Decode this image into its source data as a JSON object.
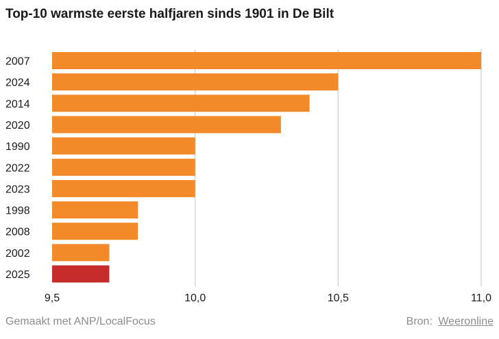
{
  "chart_data": {
    "type": "bar",
    "orientation": "horizontal",
    "title": "Top-10 warmste eerste halfjaren sinds 1901 in De Bilt",
    "categories": [
      "2007",
      "2024",
      "2014",
      "2020",
      "1990",
      "2022",
      "2023",
      "1998",
      "2008",
      "2002",
      "2025"
    ],
    "values": [
      11.0,
      10.5,
      10.4,
      10.3,
      10.0,
      10.0,
      10.0,
      9.8,
      9.8,
      9.7,
      9.7
    ],
    "xlim": [
      9.5,
      11.0
    ],
    "xticks": [
      9.5,
      10.0,
      10.5,
      11.0
    ],
    "xtick_labels": [
      "9,5",
      "10,0",
      "10,5",
      "11,0"
    ],
    "xlabel": "",
    "ylabel": "",
    "grid": "vertical",
    "colors": {
      "default": "#f28a2a",
      "highlight": "#c62d2a",
      "grid": "#d6d6d6",
      "text": "#1a1a1a"
    },
    "highlight_category": "2025"
  },
  "footer": {
    "credit": "Gemaakt met ANP/LocalFocus",
    "source_label": "Bron:",
    "source_name": "Weeronline"
  }
}
